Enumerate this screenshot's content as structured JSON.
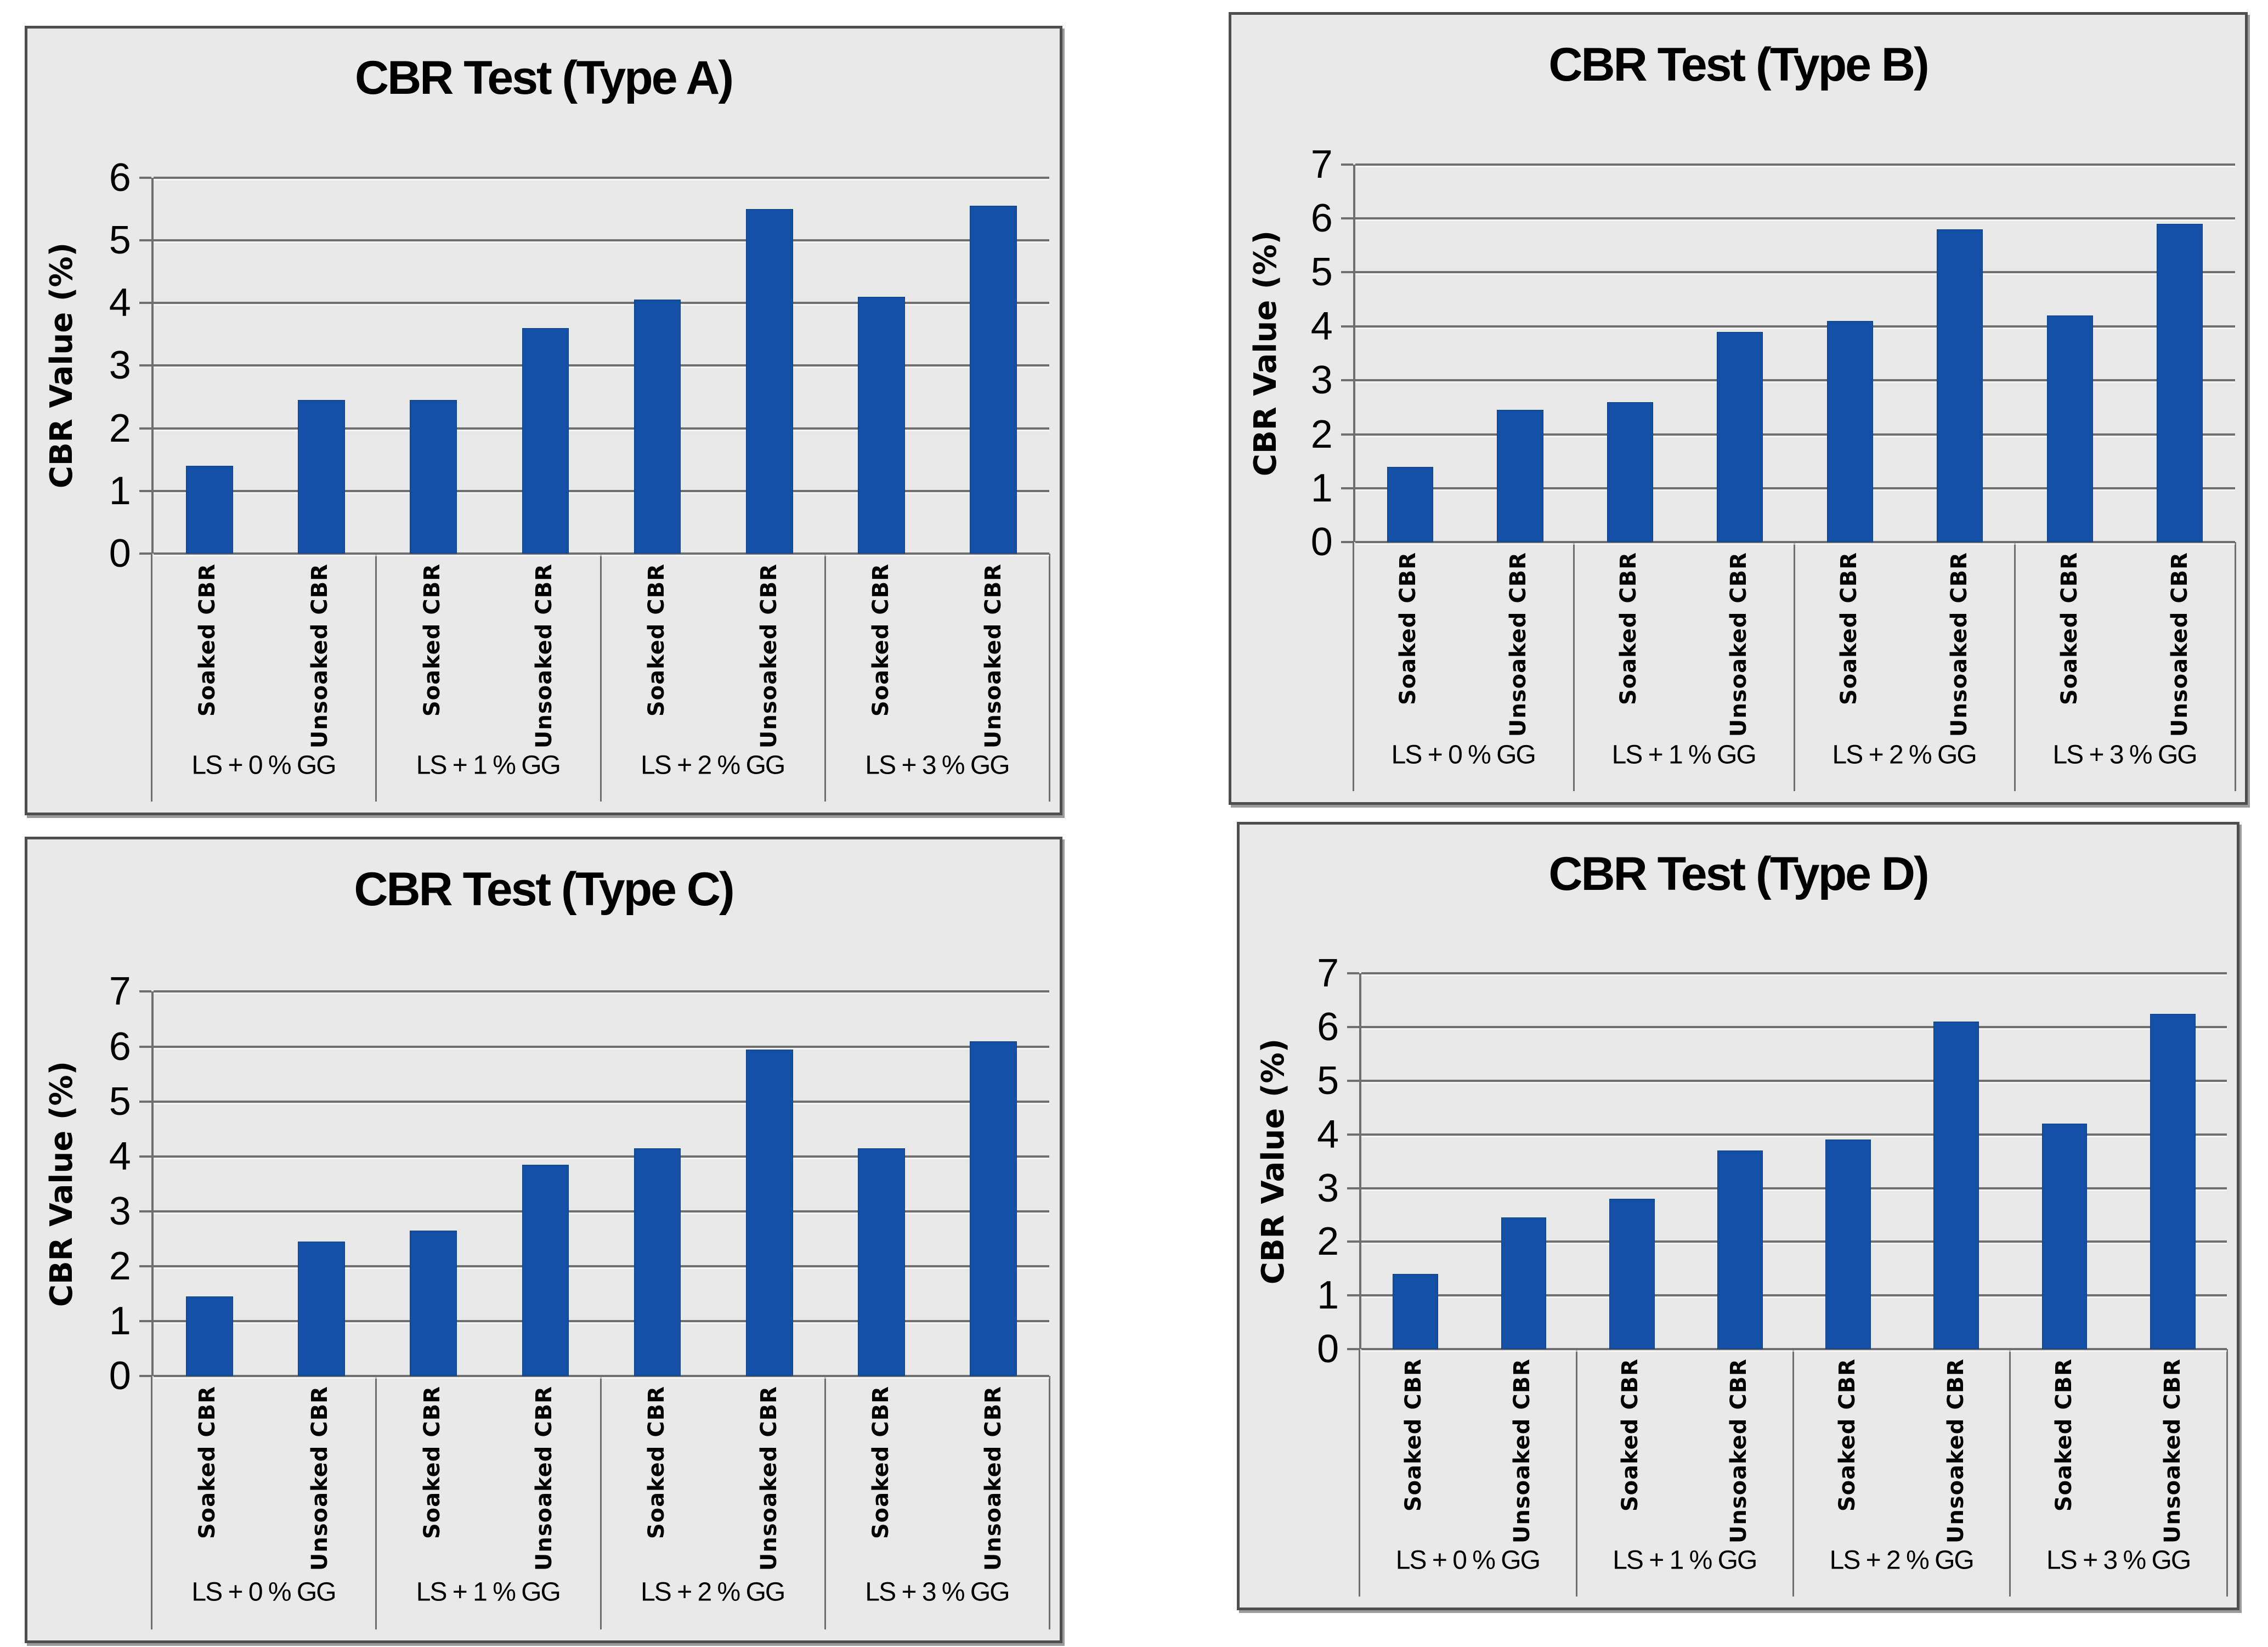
{
  "figure": {
    "description_labels": {
      "soaked": "Soaked CBR",
      "unsoaked": "Unsoaked CBR"
    },
    "colors": {
      "bar": "#1350A5",
      "panel_background": "#E9E9E9",
      "gridline": "#6F6F6F",
      "panel_border": "#4E4E4E"
    }
  },
  "chart_data": [
    {
      "type": "bar",
      "title": "CBR Test (Type A)",
      "xlabel": "",
      "ylabel": "CBR Value (%)",
      "ylim": [
        0,
        6
      ],
      "ytick_step": 1,
      "grid": true,
      "legend": "none",
      "bar_color": "#1350A5",
      "group_labels": [
        "LS + 0 % GG",
        "LS + 1 % GG",
        "LS + 2 % GG",
        "LS + 3 % GG"
      ],
      "categories": [
        "Soaked CBR",
        "Unsoaked CBR",
        "Soaked CBR",
        "Unsoaked CBR",
        "Soaked CBR",
        "Unsoaked CBR",
        "Soaked CBR",
        "Unsoaked CBR"
      ],
      "values": [
        1.4,
        2.45,
        2.45,
        3.6,
        4.05,
        5.5,
        4.1,
        5.55
      ]
    },
    {
      "type": "bar",
      "title": "CBR Test (Type B)",
      "xlabel": "",
      "ylabel": "CBR Value (%)",
      "ylim": [
        0,
        7
      ],
      "ytick_step": 1,
      "grid": true,
      "legend": "none",
      "bar_color": "#1350A5",
      "group_labels": [
        "LS + 0 % GG",
        "LS + 1 % GG",
        "LS + 2 % GG",
        "LS + 3 % GG"
      ],
      "categories": [
        "Soaked CBR",
        "Unsoaked CBR",
        "Soaked CBR",
        "Unsoaked CBR",
        "Soaked CBR",
        "Unsoaked CBR",
        "Soaked CBR",
        "Unsoaked CBR"
      ],
      "values": [
        1.4,
        2.45,
        2.6,
        3.9,
        4.1,
        5.8,
        4.2,
        5.9
      ]
    },
    {
      "type": "bar",
      "title": "CBR Test (Type C)",
      "xlabel": "",
      "ylabel": "CBR Value (%)",
      "ylim": [
        0,
        7
      ],
      "ytick_step": 1,
      "grid": true,
      "legend": "none",
      "bar_color": "#1350A5",
      "group_labels": [
        "LS + 0 % GG",
        "LS + 1 % GG",
        "LS + 2 % GG",
        "LS + 3 % GG"
      ],
      "categories": [
        "Soaked CBR",
        "Unsoaked CBR",
        "Soaked CBR",
        "Unsoaked CBR",
        "Soaked CBR",
        "Unsoaked CBR",
        "Soaked CBR",
        "Unsoaked CBR"
      ],
      "values": [
        1.45,
        2.45,
        2.65,
        3.85,
        4.15,
        5.95,
        4.15,
        6.1
      ]
    },
    {
      "type": "bar",
      "title": "CBR Test (Type D)",
      "xlabel": "",
      "ylabel": "CBR Value (%)",
      "ylim": [
        0,
        7
      ],
      "ytick_step": 1,
      "grid": true,
      "legend": "none",
      "bar_color": "#1350A5",
      "group_labels": [
        "LS + 0 % GG",
        "LS + 1 % GG",
        "LS + 2 % GG",
        "LS + 3 % GG"
      ],
      "categories": [
        "Soaked CBR",
        "Unsoaked CBR",
        "Soaked CBR",
        "Unsoaked CBR",
        "Soaked CBR",
        "Unsoaked CBR",
        "Soaked CBR",
        "Unsoaked CBR"
      ],
      "values": [
        1.4,
        2.45,
        2.8,
        3.7,
        3.9,
        6.1,
        4.2,
        6.25
      ]
    }
  ]
}
